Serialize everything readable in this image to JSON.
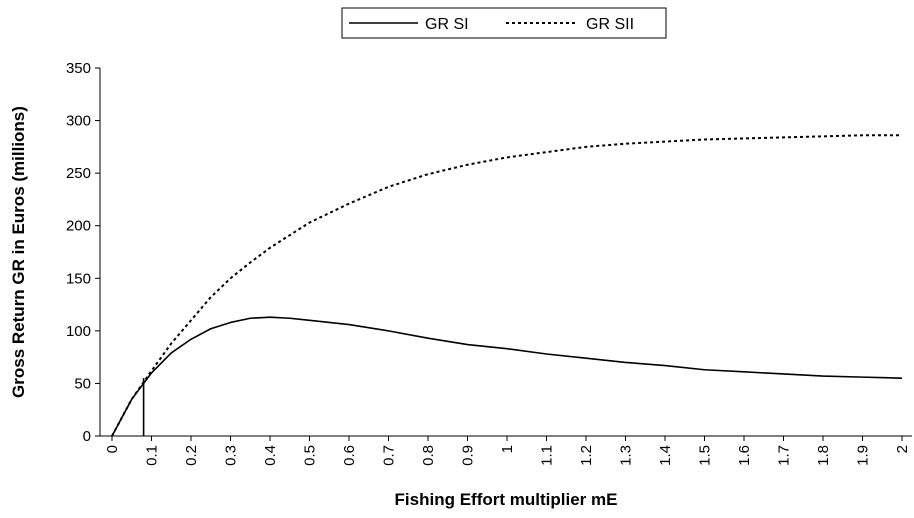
{
  "chart_data": {
    "type": "line",
    "title": "",
    "xlabel": "Fishing Effort multiplier mE",
    "ylabel": "Gross Return GR in Euros (millions)",
    "xlim": [
      0,
      2
    ],
    "ylim": [
      0,
      350
    ],
    "grid": false,
    "legend_position": "top-center",
    "x_ticks": [
      "0",
      "0.1",
      "0.2",
      "0.3",
      "0.4",
      "0.5",
      "0.6",
      "0.7",
      "0.8",
      "0.9",
      "1",
      "1.1",
      "1.2",
      "1.3",
      "1.4",
      "1.5",
      "1.6",
      "1.7",
      "1.8",
      "1.9",
      "2"
    ],
    "y_ticks": [
      "0",
      "50",
      "100",
      "150",
      "200",
      "250",
      "300",
      "350"
    ],
    "series": [
      {
        "name": "GR SI",
        "style": "solid",
        "color": "#000000",
        "x": [
          0,
          0.05,
          0.1,
          0.15,
          0.2,
          0.25,
          0.3,
          0.35,
          0.4,
          0.45,
          0.5,
          0.6,
          0.7,
          0.8,
          0.9,
          1.0,
          1.1,
          1.2,
          1.3,
          1.4,
          1.5,
          1.6,
          1.7,
          1.8,
          1.9,
          2.0
        ],
        "y": [
          0,
          35,
          60,
          79,
          92,
          102,
          108,
          112,
          113,
          112,
          110,
          106,
          100,
          93,
          87,
          83,
          78,
          74,
          70,
          67,
          63,
          61,
          59,
          57,
          56,
          55
        ]
      },
      {
        "name": "GR SII",
        "style": "dotted",
        "color": "#000000",
        "x": [
          0,
          0.05,
          0.1,
          0.15,
          0.2,
          0.25,
          0.3,
          0.35,
          0.4,
          0.5,
          0.6,
          0.7,
          0.8,
          0.9,
          1.0,
          1.1,
          1.2,
          1.3,
          1.4,
          1.5,
          1.6,
          1.7,
          1.8,
          1.9,
          2.0
        ],
        "y": [
          0,
          35,
          62,
          88,
          110,
          132,
          150,
          165,
          179,
          203,
          221,
          237,
          249,
          258,
          265,
          270,
          275,
          278,
          280,
          282,
          283,
          284,
          285,
          286,
          286
        ]
      }
    ],
    "annotations": [
      {
        "type": "vertical-marker",
        "x": 0.08,
        "y_from": 0,
        "y_to": 55
      }
    ]
  }
}
